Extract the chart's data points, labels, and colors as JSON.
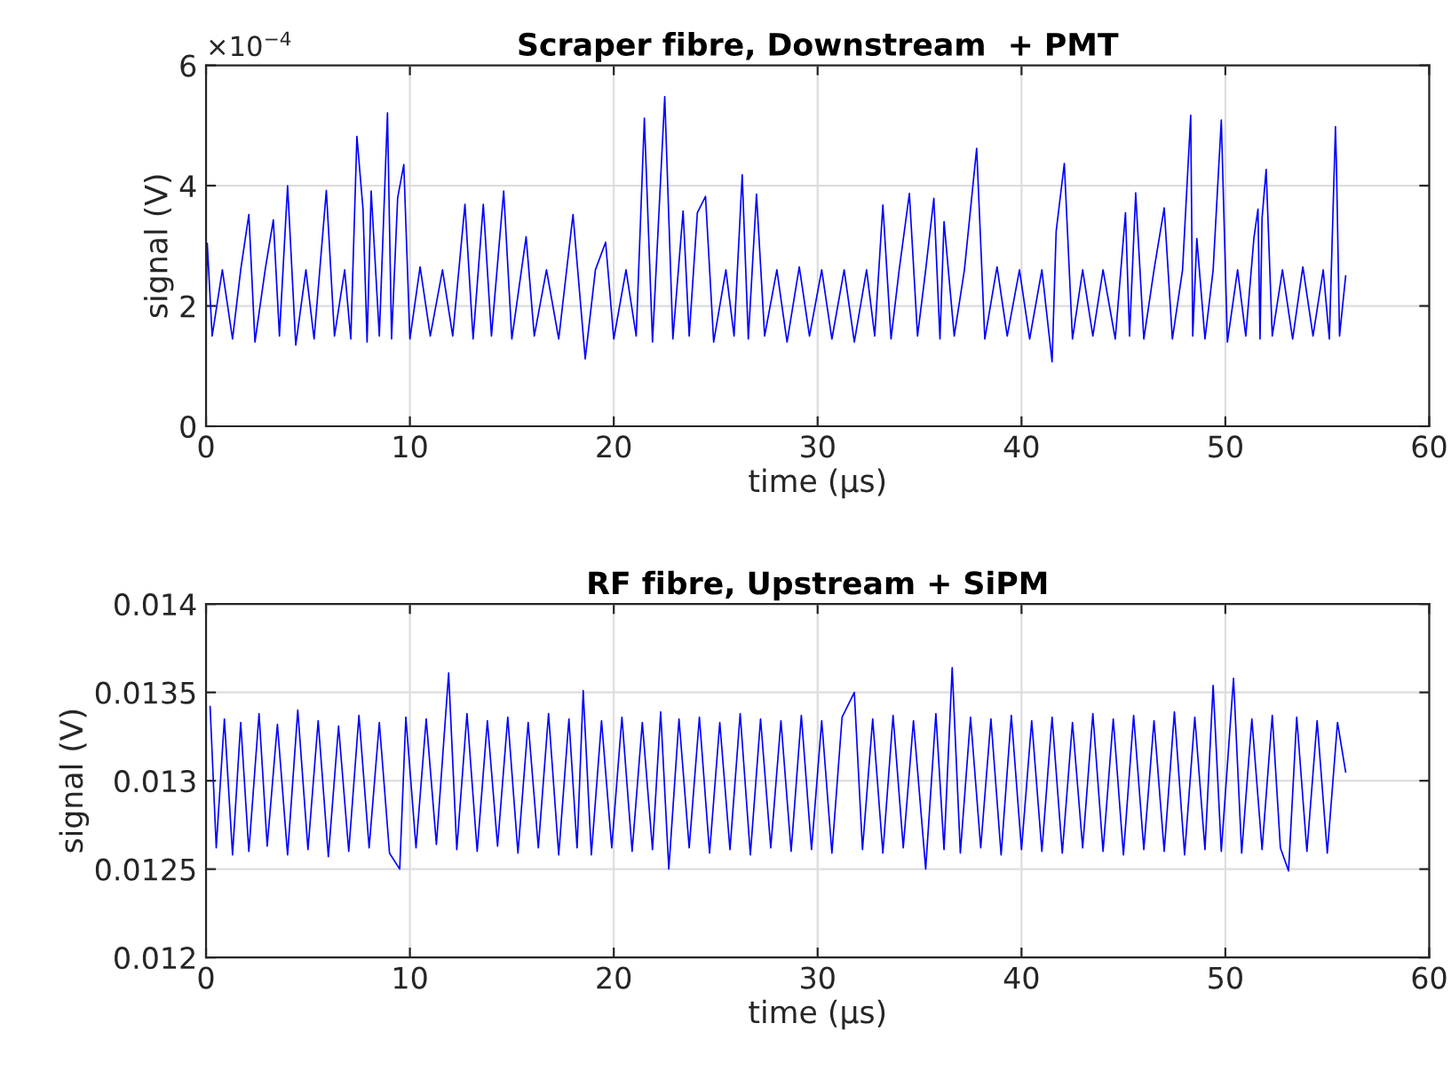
{
  "chart_data": [
    {
      "type": "line",
      "title": "Scraper fibre, Downstream  + PMT",
      "xlabel": "time (μs)",
      "ylabel": "signal (V)",
      "annotations": [
        "×10$^{−4}$"
      ],
      "grid": true,
      "xlim": [
        0,
        60
      ],
      "xticks": [
        0,
        10,
        20,
        30,
        40,
        50,
        60
      ],
      "ylim": [
        0,
        6
      ],
      "yticks": [
        0,
        2,
        4,
        6
      ],
      "series": [
        {
          "color": "#0000ff",
          "x": [
            0,
            0.06,
            0.3,
            0.8,
            1.3,
            1.7,
            2.1,
            2.4,
            2.9,
            3.3,
            3.6,
            4.0,
            4.4,
            4.9,
            5.3,
            5.9,
            6.3,
            6.8,
            7.1,
            7.4,
            7.7,
            7.9,
            8.1,
            8.5,
            8.9,
            9.1,
            9.4,
            9.7,
            10.0,
            10.5,
            11.0,
            11.6,
            12.1,
            12.7,
            13.1,
            13.6,
            14.0,
            14.6,
            15.0,
            15.7,
            16.1,
            16.7,
            17.3,
            18.0,
            18.6,
            19.1,
            19.6,
            20.0,
            20.6,
            21.1,
            21.5,
            21.9,
            22.5,
            22.9,
            23.4,
            23.7,
            24.1,
            24.5,
            24.9,
            25.5,
            25.9,
            26.3,
            26.6,
            27.0,
            27.4,
            28.0,
            28.5,
            29.1,
            29.6,
            30.2,
            30.7,
            31.3,
            31.8,
            32.4,
            32.8,
            33.2,
            33.6,
            34.0,
            34.5,
            34.9,
            35.3,
            35.7,
            36.0,
            36.2,
            36.7,
            37.2,
            37.8,
            38.2,
            38.8,
            39.3,
            39.9,
            40.4,
            41.0,
            41.5,
            41.7,
            42.1,
            42.5,
            43.0,
            43.5,
            44.0,
            44.6,
            45.1,
            45.3,
            45.6,
            46.0,
            46.5,
            47.0,
            47.4,
            47.9,
            48.3,
            48.4,
            48.6,
            49.0,
            49.4,
            49.8,
            50.1,
            50.6,
            51.0,
            51.4,
            51.6,
            51.7,
            51.8,
            52.0,
            52.3,
            52.8,
            53.3,
            53.8,
            54.3,
            54.8,
            55.1,
            55.4,
            55.45,
            55.6,
            55.9
          ],
          "values": [
            2.0,
            3.04,
            1.5,
            2.6,
            1.45,
            2.6,
            3.52,
            1.4,
            2.6,
            3.43,
            1.5,
            4.0,
            1.35,
            2.6,
            1.45,
            3.92,
            1.5,
            2.6,
            1.45,
            4.82,
            3.61,
            1.4,
            3.91,
            1.5,
            5.21,
            1.45,
            3.8,
            4.35,
            1.45,
            2.65,
            1.5,
            2.6,
            1.5,
            3.69,
            1.45,
            3.69,
            1.5,
            3.91,
            1.45,
            3.15,
            1.5,
            2.6,
            1.45,
            3.52,
            1.12,
            2.6,
            3.06,
            1.45,
            2.6,
            1.5,
            5.12,
            1.4,
            5.48,
            1.45,
            3.58,
            1.5,
            3.55,
            3.82,
            1.4,
            2.6,
            1.5,
            4.18,
            1.45,
            3.86,
            1.5,
            2.6,
            1.4,
            2.65,
            1.5,
            2.6,
            1.45,
            2.6,
            1.4,
            2.6,
            1.5,
            3.68,
            1.45,
            2.6,
            3.87,
            1.5,
            2.6,
            3.79,
            1.45,
            3.4,
            1.5,
            2.6,
            4.62,
            1.45,
            2.65,
            1.5,
            2.6,
            1.45,
            2.6,
            1.07,
            3.24,
            4.37,
            1.45,
            2.6,
            1.5,
            2.6,
            1.45,
            3.55,
            1.5,
            3.88,
            1.45,
            2.6,
            3.63,
            1.45,
            2.6,
            5.17,
            1.5,
            3.12,
            1.45,
            2.6,
            5.09,
            1.4,
            2.6,
            1.5,
            3.13,
            3.61,
            1.45,
            3.46,
            4.27,
            1.5,
            2.6,
            1.45,
            2.65,
            1.5,
            2.6,
            1.45,
            4.98,
            4.34,
            1.5,
            2.5
          ]
        }
      ]
    },
    {
      "type": "line",
      "title": "RF fibre, Upstream + SiPM",
      "xlabel": "time (μs)",
      "ylabel": "signal (V)",
      "grid": true,
      "xlim": [
        0,
        60
      ],
      "xticks": [
        0,
        10,
        20,
        30,
        40,
        50,
        60
      ],
      "ylim": [
        0.012,
        0.014
      ],
      "yticks": [
        0.012,
        0.0125,
        0.013,
        0.0135,
        0.014
      ],
      "series": [
        {
          "color": "#0000ff",
          "x": [
            0.2,
            0.5,
            0.9,
            1.3,
            1.7,
            2.1,
            2.6,
            3.0,
            3.5,
            4.0,
            4.5,
            5.0,
            5.5,
            6.0,
            6.5,
            7.0,
            7.5,
            8.0,
            8.5,
            9.0,
            9.5,
            9.8,
            10.3,
            10.8,
            11.3,
            11.9,
            12.3,
            12.8,
            13.3,
            13.8,
            14.3,
            14.8,
            15.3,
            15.8,
            16.3,
            16.8,
            17.3,
            17.8,
            18.2,
            18.5,
            18.9,
            19.4,
            19.9,
            20.4,
            20.9,
            21.4,
            21.9,
            22.3,
            22.7,
            23.2,
            23.7,
            24.2,
            24.7,
            25.2,
            25.7,
            26.2,
            26.7,
            27.2,
            27.7,
            28.2,
            28.7,
            29.2,
            29.7,
            30.2,
            30.7,
            31.2,
            31.8,
            32.2,
            32.7,
            33.2,
            33.7,
            34.2,
            34.7,
            35.3,
            35.8,
            36.2,
            36.6,
            37.0,
            37.5,
            38.0,
            38.5,
            39.0,
            39.5,
            40.0,
            40.5,
            41.0,
            41.5,
            42.0,
            42.5,
            43.0,
            43.5,
            44.0,
            44.5,
            45.0,
            45.5,
            46.0,
            46.5,
            47.0,
            47.5,
            48.0,
            48.5,
            49.0,
            49.4,
            49.8,
            50.4,
            50.8,
            51.3,
            51.8,
            52.3,
            52.7,
            53.1,
            53.5,
            54.0,
            54.5,
            55.0,
            55.5,
            55.9
          ],
          "values": [
            0.01342,
            0.01262,
            0.01335,
            0.01258,
            0.01333,
            0.0126,
            0.01338,
            0.01263,
            0.01332,
            0.01258,
            0.0134,
            0.01261,
            0.01334,
            0.01257,
            0.01331,
            0.0126,
            0.01337,
            0.01262,
            0.01333,
            0.01259,
            0.0125,
            0.01336,
            0.01262,
            0.01335,
            0.01264,
            0.01361,
            0.01261,
            0.01338,
            0.0126,
            0.01334,
            0.01263,
            0.01336,
            0.01259,
            0.01333,
            0.01262,
            0.01338,
            0.01258,
            0.01335,
            0.01262,
            0.01351,
            0.01258,
            0.01334,
            0.01262,
            0.01336,
            0.0126,
            0.01333,
            0.01261,
            0.01339,
            0.0125,
            0.01335,
            0.01262,
            0.01336,
            0.01259,
            0.01333,
            0.01261,
            0.01338,
            0.01258,
            0.01335,
            0.01262,
            0.01334,
            0.0126,
            0.01337,
            0.01261,
            0.01334,
            0.01259,
            0.01336,
            0.0135,
            0.01261,
            0.01335,
            0.01259,
            0.01337,
            0.01262,
            0.01334,
            0.0125,
            0.01338,
            0.01261,
            0.01364,
            0.01259,
            0.01336,
            0.01262,
            0.01335,
            0.01258,
            0.01337,
            0.01261,
            0.01334,
            0.0126,
            0.01336,
            0.01259,
            0.01333,
            0.01262,
            0.01338,
            0.0126,
            0.01335,
            0.01258,
            0.01337,
            0.01261,
            0.01334,
            0.0126,
            0.01339,
            0.01258,
            0.01336,
            0.01261,
            0.01354,
            0.0126,
            0.01358,
            0.01259,
            0.01335,
            0.01261,
            0.01337,
            0.01262,
            0.01249,
            0.01336,
            0.0126,
            0.01334,
            0.01259,
            0.01333,
            0.01305
          ]
        }
      ]
    }
  ]
}
